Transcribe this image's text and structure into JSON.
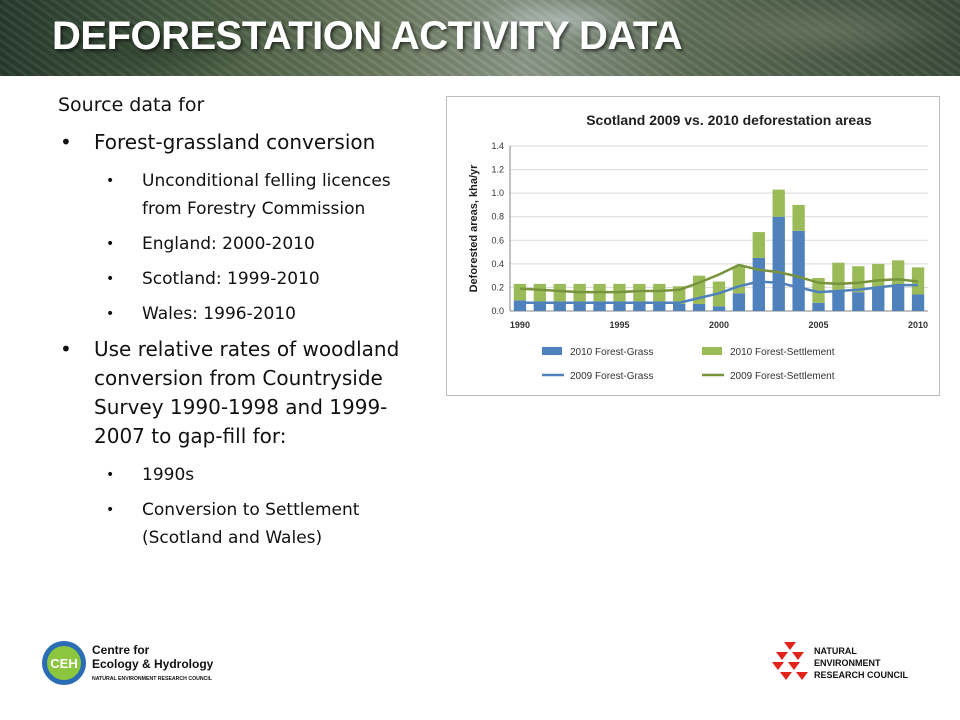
{
  "banner": {
    "title": "DEFORESTATION ACTIVITY DATA"
  },
  "content": {
    "intro": "Source data for",
    "bullet1": "Forest-grassland conversion",
    "sub1": [
      "Unconditional felling licences from Forestry Commission",
      "England: 2000-2010",
      "Scotland: 1999-2010",
      "Wales: 1996-2010"
    ],
    "bullet2": "Use relative rates of woodland conversion from Countryside Survey 1990-1998 and 1999-2007 to gap-fill for:",
    "sub2": [
      "1990s",
      "Conversion to Settlement (Scotland and Wales)"
    ]
  },
  "chart_data": {
    "type": "bar",
    "title": "Scotland 2009 vs. 2010 deforestation areas",
    "ylabel": "Deforested areas, kha/yr",
    "xlabel": "",
    "x": [
      1990,
      1991,
      1992,
      1993,
      1994,
      1995,
      1996,
      1997,
      1998,
      1999,
      2000,
      2001,
      2002,
      2003,
      2004,
      2005,
      2006,
      2007,
      2008,
      2009,
      2010
    ],
    "ylim": [
      0,
      1.4
    ],
    "yticks": [
      "0.0",
      "0.2",
      "0.4",
      "0.6",
      "0.8",
      "1.0",
      "1.2",
      "1.4"
    ],
    "xticks": [
      "1990",
      "1995",
      "2000",
      "2005",
      "2010"
    ],
    "grid": true,
    "legend_position": "bottom",
    "series": [
      {
        "name": "2010 Forest-Grass",
        "kind": "bar-stack",
        "color": "#4f81bd",
        "values": [
          0.09,
          0.08,
          0.08,
          0.07,
          0.07,
          0.07,
          0.07,
          0.07,
          0.06,
          0.06,
          0.04,
          0.15,
          0.45,
          0.8,
          0.68,
          0.07,
          0.18,
          0.16,
          0.2,
          0.21,
          0.14
        ]
      },
      {
        "name": "2010 Forest-Settlement",
        "kind": "bar-stack",
        "color": "#9bbb59",
        "values": [
          0.14,
          0.15,
          0.15,
          0.16,
          0.16,
          0.16,
          0.16,
          0.16,
          0.15,
          0.24,
          0.21,
          0.23,
          0.22,
          0.23,
          0.22,
          0.21,
          0.23,
          0.22,
          0.2,
          0.22,
          0.23
        ]
      },
      {
        "name": "2009 Forest-Grass",
        "kind": "line",
        "color": "#4f81bd",
        "values": [
          0.07,
          0.07,
          0.07,
          0.07,
          0.07,
          0.07,
          0.07,
          0.07,
          0.07,
          0.11,
          0.15,
          0.21,
          0.25,
          0.24,
          0.2,
          0.16,
          0.17,
          0.18,
          0.2,
          0.22,
          0.22
        ]
      },
      {
        "name": "2009 Forest-Settlement",
        "kind": "line",
        "color": "#77933c",
        "values": [
          0.19,
          0.18,
          0.17,
          0.16,
          0.16,
          0.16,
          0.17,
          0.17,
          0.18,
          0.24,
          0.31,
          0.39,
          0.35,
          0.33,
          0.29,
          0.24,
          0.23,
          0.24,
          0.26,
          0.27,
          0.25
        ]
      }
    ]
  },
  "logos": {
    "ceh_badge": "CEH",
    "ceh_line1": "Centre for",
    "ceh_line2": "Ecology & Hydrology",
    "ceh_line3": "NATURAL ENVIRONMENT RESEARCH COUNCIL",
    "nerc_line1": "NATURAL",
    "nerc_line2": "ENVIRONMENT",
    "nerc_line3": "RESEARCH COUNCIL",
    "ceh_color": "#2a6db5",
    "nerc_color": "#e2231a"
  }
}
